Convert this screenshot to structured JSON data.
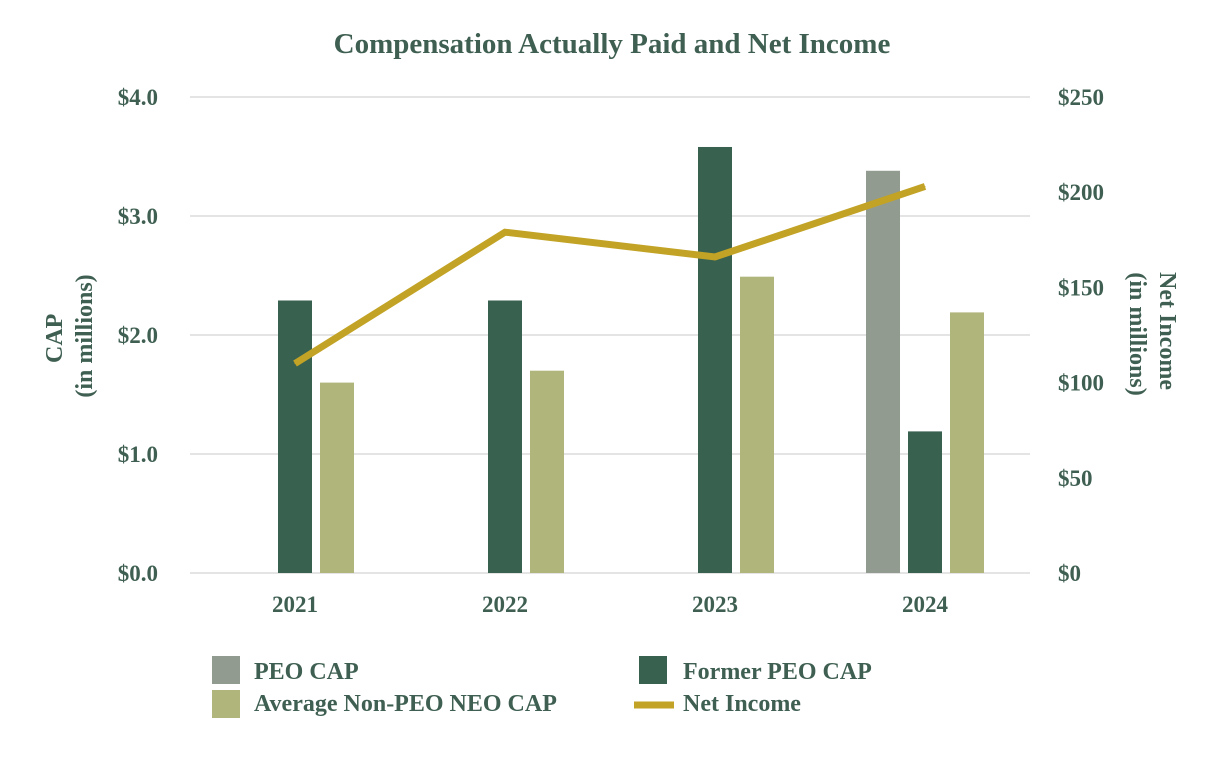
{
  "chart_data": {
    "type": "bar",
    "title": "Compensation Actually Paid and Net Income",
    "categories": [
      "2021",
      "2022",
      "2023",
      "2024"
    ],
    "y_left": {
      "label_lines": [
        "CAP",
        "(in millions)"
      ],
      "range": [
        0,
        4
      ],
      "ticks": [
        0,
        1,
        2,
        3,
        4
      ],
      "tick_labels": [
        "$0.0",
        "$1.0",
        "$2.0",
        "$3.0",
        "$4.0"
      ]
    },
    "y_right": {
      "label_lines": [
        "Net Income",
        "(in millions)"
      ],
      "range": [
        0,
        250
      ],
      "ticks": [
        0,
        50,
        100,
        150,
        200,
        250
      ],
      "tick_labels": [
        "$0",
        "$50",
        "$100",
        "$150",
        "$200",
        "$250"
      ]
    },
    "series": [
      {
        "name": "PEO CAP",
        "type": "bar",
        "axis": "left",
        "color": "#919b90",
        "values": [
          null,
          null,
          null,
          3.38
        ]
      },
      {
        "name": "Former PEO CAP",
        "type": "bar",
        "axis": "left",
        "color": "#386150",
        "values": [
          2.29,
          2.29,
          3.58,
          1.19
        ]
      },
      {
        "name": "Average Non-PEO NEO CAP",
        "type": "bar",
        "axis": "left",
        "color": "#b0b67b",
        "values": [
          1.6,
          1.7,
          2.49,
          2.19
        ]
      },
      {
        "name": "Net Income",
        "type": "line",
        "axis": "right",
        "color": "#c2a325",
        "values": [
          110,
          179,
          166,
          203
        ]
      }
    ],
    "legend": {
      "placement": "bottom",
      "items": [
        "PEO CAP",
        "Former PEO CAP",
        "Average Non-PEO NEO CAP",
        "Net Income"
      ]
    },
    "grid": true
  }
}
